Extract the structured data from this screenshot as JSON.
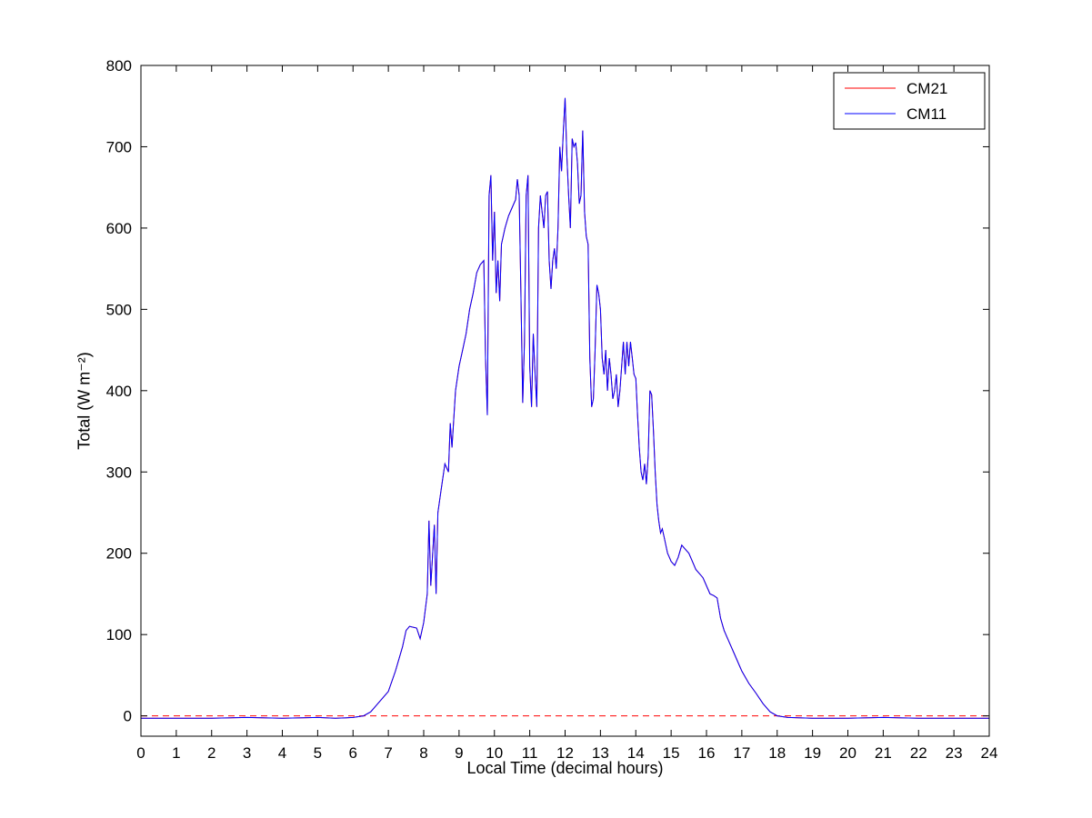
{
  "figure": {
    "background_color": "#ffffff",
    "axes_color": "#000000",
    "plot_background": "#ffffff"
  },
  "chart_data": {
    "type": "line",
    "title": "",
    "xlabel": "Local Time (decimal hours)",
    "ylabel": "Total (W m⁻²)",
    "xlim": [
      0,
      24
    ],
    "ylim": [
      -25,
      800
    ],
    "xticks": [
      0,
      1,
      2,
      3,
      4,
      5,
      6,
      7,
      8,
      9,
      10,
      11,
      12,
      13,
      14,
      15,
      16,
      17,
      18,
      19,
      20,
      21,
      22,
      23,
      24
    ],
    "yticks": [
      0,
      100,
      200,
      300,
      400,
      500,
      600,
      700,
      800
    ],
    "grid": false,
    "legend_position": "top-right",
    "reference_line": {
      "y": 0,
      "style": "dashed",
      "color": "#ff0000"
    },
    "x": [
      0,
      1,
      2,
      3,
      4,
      5,
      5.5,
      6,
      6.3,
      6.5,
      6.7,
      7,
      7.2,
      7.4,
      7.5,
      7.6,
      7.8,
      7.9,
      8,
      8.1,
      8.15,
      8.2,
      8.3,
      8.35,
      8.4,
      8.5,
      8.6,
      8.7,
      8.75,
      8.8,
      8.9,
      9,
      9.1,
      9.2,
      9.3,
      9.4,
      9.5,
      9.6,
      9.7,
      9.75,
      9.8,
      9.85,
      9.9,
      9.95,
      10,
      10.05,
      10.1,
      10.15,
      10.2,
      10.3,
      10.4,
      10.5,
      10.6,
      10.65,
      10.7,
      10.75,
      10.8,
      10.85,
      10.9,
      10.95,
      11,
      11.05,
      11.1,
      11.15,
      11.2,
      11.25,
      11.3,
      11.35,
      11.4,
      11.45,
      11.5,
      11.55,
      11.6,
      11.65,
      11.7,
      11.75,
      11.8,
      11.85,
      11.9,
      11.95,
      12,
      12.05,
      12.1,
      12.15,
      12.2,
      12.25,
      12.3,
      12.35,
      12.4,
      12.45,
      12.5,
      12.55,
      12.6,
      12.65,
      12.7,
      12.75,
      12.8,
      12.85,
      12.9,
      12.95,
      13,
      13.05,
      13.1,
      13.15,
      13.2,
      13.25,
      13.3,
      13.35,
      13.4,
      13.45,
      13.5,
      13.55,
      13.6,
      13.65,
      13.7,
      13.75,
      13.8,
      13.85,
      13.9,
      13.95,
      14,
      14.05,
      14.1,
      14.15,
      14.2,
      14.25,
      14.3,
      14.35,
      14.4,
      14.45,
      14.5,
      14.55,
      14.6,
      14.65,
      14.7,
      14.75,
      14.8,
      14.85,
      14.9,
      14.95,
      15,
      15.1,
      15.2,
      15.3,
      15.4,
      15.5,
      15.6,
      15.7,
      15.8,
      15.9,
      16,
      16.1,
      16.2,
      16.3,
      16.4,
      16.5,
      16.6,
      16.7,
      16.8,
      16.9,
      17,
      17.2,
      17.4,
      17.6,
      17.8,
      18,
      18.3,
      19,
      20,
      21,
      22,
      23,
      24
    ],
    "series": [
      {
        "name": "CM21",
        "color": "#ff0000",
        "style": "solid",
        "values": [
          -3,
          -3,
          -3,
          -2,
          -3,
          -2,
          -3,
          -2,
          0,
          5,
          15,
          30,
          55,
          85,
          105,
          110,
          108,
          95,
          115,
          150,
          240,
          160,
          235,
          150,
          250,
          280,
          310,
          300,
          360,
          330,
          400,
          430,
          450,
          470,
          500,
          520,
          545,
          555,
          560,
          440,
          370,
          640,
          665,
          560,
          620,
          520,
          560,
          510,
          580,
          600,
          615,
          625,
          635,
          660,
          640,
          520,
          385,
          460,
          640,
          665,
          430,
          380,
          470,
          420,
          380,
          600,
          640,
          620,
          600,
          640,
          645,
          560,
          525,
          560,
          575,
          550,
          600,
          700,
          670,
          720,
          760,
          690,
          640,
          600,
          710,
          700,
          705,
          680,
          630,
          640,
          720,
          620,
          590,
          580,
          440,
          380,
          390,
          450,
          530,
          520,
          500,
          440,
          420,
          450,
          400,
          440,
          420,
          390,
          400,
          420,
          380,
          400,
          430,
          460,
          420,
          460,
          430,
          460,
          440,
          420,
          415,
          370,
          330,
          300,
          290,
          310,
          285,
          320,
          400,
          395,
          350,
          300,
          260,
          240,
          225,
          230,
          220,
          210,
          200,
          195,
          190,
          185,
          195,
          210,
          205,
          200,
          190,
          180,
          175,
          170,
          160,
          150,
          148,
          145,
          120,
          105,
          95,
          85,
          75,
          65,
          55,
          40,
          28,
          15,
          5,
          0,
          -2,
          -3,
          -3,
          -2,
          -3,
          -3,
          -3
        ]
      },
      {
        "name": "CM11",
        "color": "#0000ff",
        "style": "solid",
        "values": [
          -3,
          -3,
          -3,
          -2,
          -3,
          -2,
          -3,
          -2,
          0,
          5,
          15,
          30,
          55,
          85,
          105,
          110,
          108,
          95,
          115,
          150,
          240,
          160,
          235,
          150,
          250,
          280,
          310,
          300,
          360,
          330,
          400,
          430,
          450,
          470,
          500,
          520,
          545,
          555,
          560,
          440,
          370,
          640,
          665,
          560,
          620,
          520,
          560,
          510,
          580,
          600,
          615,
          625,
          635,
          660,
          640,
          520,
          385,
          460,
          640,
          665,
          430,
          380,
          470,
          420,
          380,
          600,
          640,
          620,
          600,
          640,
          645,
          560,
          525,
          560,
          575,
          550,
          600,
          700,
          670,
          720,
          760,
          690,
          640,
          600,
          710,
          700,
          705,
          680,
          630,
          640,
          720,
          620,
          590,
          580,
          440,
          380,
          390,
          450,
          530,
          520,
          500,
          440,
          420,
          450,
          400,
          440,
          420,
          390,
          400,
          420,
          380,
          400,
          430,
          460,
          420,
          460,
          430,
          460,
          440,
          420,
          415,
          370,
          330,
          300,
          290,
          310,
          285,
          320,
          400,
          395,
          350,
          300,
          260,
          240,
          225,
          230,
          220,
          210,
          200,
          195,
          190,
          185,
          195,
          210,
          205,
          200,
          190,
          180,
          175,
          170,
          160,
          150,
          148,
          145,
          120,
          105,
          95,
          85,
          75,
          65,
          55,
          40,
          28,
          15,
          5,
          0,
          -2,
          -3,
          -3,
          -2,
          -3,
          -3,
          -3
        ]
      }
    ]
  }
}
